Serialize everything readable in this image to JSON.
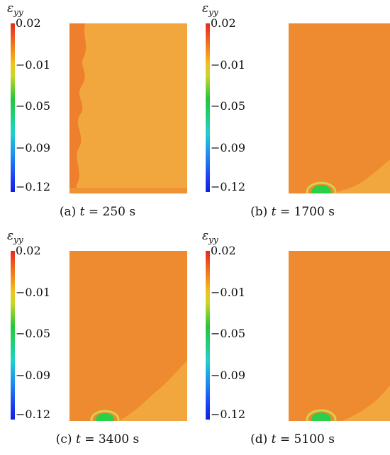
{
  "symbol_base": "ε",
  "symbol_sub": "yy",
  "ticks": [
    "0.02",
    "−0.01",
    "−0.05",
    "−0.09",
    "−0.12"
  ],
  "panels": [
    {
      "label": "(a)",
      "var": "t",
      "eq": "= 250 s"
    },
    {
      "label": "(b)",
      "var": "t",
      "eq": "= 1700 s"
    },
    {
      "label": "(c)",
      "var": "t",
      "eq": "= 3400 s"
    },
    {
      "label": "(d)",
      "var": "t",
      "eq": "= 5100 s"
    }
  ],
  "colors": {
    "field_orange": "#f09a3a",
    "field_yellow_orange": "#f2a63e",
    "field_red_orange": "#ee7f2c",
    "hotspot_green": "#2bd04a"
  }
}
